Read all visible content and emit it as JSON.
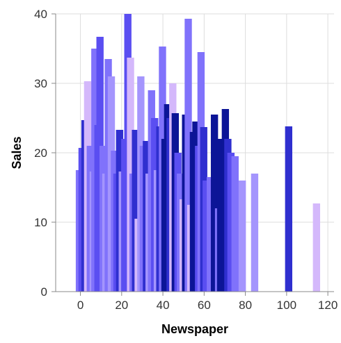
{
  "chart_data": {
    "type": "bar",
    "title": "",
    "xlabel": "Newspaper",
    "ylabel": "Sales",
    "xlim": [
      -12,
      123
    ],
    "ylim": [
      0,
      40
    ],
    "x_ticks": [
      0,
      20,
      40,
      60,
      80,
      100,
      120
    ],
    "y_ticks": [
      0,
      10,
      20,
      30,
      40
    ],
    "x_tick_labels": [
      "0",
      "20",
      "40",
      "60",
      "80",
      "100",
      "120"
    ],
    "y_tick_labels": [
      "0",
      "10",
      "20",
      "30",
      "40"
    ],
    "grid": true,
    "bar_width": 3.5,
    "colors": {
      "lavender": "#d4b8fb",
      "light": "#a495fd",
      "medium": "#8072fb",
      "blue": "#5a4ef1",
      "royal": "#2f2fcf",
      "navy": "#0c1597"
    },
    "bars": [
      {
        "x": -0.5,
        "y": 17.5,
        "color": "#8072fb"
      },
      {
        "x": 0.8,
        "y": 20.7,
        "color": "#5a4ef1"
      },
      {
        "x": 2.2,
        "y": 24.7,
        "color": "#2f2fcf"
      },
      {
        "x": 3.5,
        "y": 30.3,
        "color": "#d4b8fb"
      },
      {
        "x": 4.8,
        "y": 21.0,
        "color": "#8072fb"
      },
      {
        "x": 6.2,
        "y": 17.3,
        "color": "#a495fd"
      },
      {
        "x": 7.0,
        "y": 35.0,
        "color": "#8072fb"
      },
      {
        "x": 8.5,
        "y": 24.0,
        "color": "#5a4ef1"
      },
      {
        "x": 9.5,
        "y": 36.7,
        "color": "#5a4ef1"
      },
      {
        "x": 11.0,
        "y": 21.0,
        "color": "#8072fb"
      },
      {
        "x": 12.3,
        "y": 17.0,
        "color": "#a495fd"
      },
      {
        "x": 13.5,
        "y": 33.5,
        "color": "#8072fb"
      },
      {
        "x": 15.0,
        "y": 31.0,
        "color": "#a495fd"
      },
      {
        "x": 16.5,
        "y": 20.3,
        "color": "#8072fb"
      },
      {
        "x": 17.7,
        "y": 17.0,
        "color": "#5a4ef1"
      },
      {
        "x": 19.0,
        "y": 23.3,
        "color": "#2f2fcf"
      },
      {
        "x": 20.3,
        "y": 17.3,
        "color": "#a495fd"
      },
      {
        "x": 21.5,
        "y": 22.0,
        "color": "#5a4ef1"
      },
      {
        "x": 23.0,
        "y": 40.0,
        "color": "#5a4ef1"
      },
      {
        "x": 24.3,
        "y": 33.7,
        "color": "#d4b8fb"
      },
      {
        "x": 25.5,
        "y": 17.0,
        "color": "#8072fb"
      },
      {
        "x": 26.7,
        "y": 23.3,
        "color": "#2f2fcf"
      },
      {
        "x": 28.0,
        "y": 10.5,
        "color": "#d4b8fb"
      },
      {
        "x": 29.3,
        "y": 31.0,
        "color": "#a495fd"
      },
      {
        "x": 30.5,
        "y": 21.0,
        "color": "#8072fb"
      },
      {
        "x": 32.0,
        "y": 21.7,
        "color": "#2f2fcf"
      },
      {
        "x": 33.3,
        "y": 17.0,
        "color": "#a495fd"
      },
      {
        "x": 34.5,
        "y": 29.0,
        "color": "#8072fb"
      },
      {
        "x": 36.0,
        "y": 25.0,
        "color": "#5a4ef1"
      },
      {
        "x": 37.3,
        "y": 17.5,
        "color": "#a495fd"
      },
      {
        "x": 38.5,
        "y": 23.8,
        "color": "#2f2fcf"
      },
      {
        "x": 39.8,
        "y": 35.3,
        "color": "#8072fb"
      },
      {
        "x": 41.0,
        "y": 22.0,
        "color": "#0c1597"
      },
      {
        "x": 42.3,
        "y": 27.0,
        "color": "#0c1597"
      },
      {
        "x": 43.5,
        "y": 25.0,
        "color": "#2f2fcf"
      },
      {
        "x": 44.8,
        "y": 30.0,
        "color": "#d4b8fb"
      },
      {
        "x": 46.0,
        "y": 25.7,
        "color": "#0c1597"
      },
      {
        "x": 47.3,
        "y": 20.0,
        "color": "#5a4ef1"
      },
      {
        "x": 48.5,
        "y": 17.0,
        "color": "#8072fb"
      },
      {
        "x": 49.8,
        "y": 13.3,
        "color": "#d4b8fb"
      },
      {
        "x": 51.0,
        "y": 25.5,
        "color": "#0c1597"
      },
      {
        "x": 52.3,
        "y": 39.3,
        "color": "#8072fb"
      },
      {
        "x": 53.5,
        "y": 12.5,
        "color": "#d4b8fb"
      },
      {
        "x": 54.8,
        "y": 23.0,
        "color": "#0c1597"
      },
      {
        "x": 56.0,
        "y": 24.5,
        "color": "#0c1597"
      },
      {
        "x": 57.3,
        "y": 21.0,
        "color": "#5a4ef1"
      },
      {
        "x": 58.5,
        "y": 34.5,
        "color": "#8072fb"
      },
      {
        "x": 59.8,
        "y": 23.7,
        "color": "#2f2fcf"
      },
      {
        "x": 61.0,
        "y": 16.0,
        "color": "#5a4ef1"
      },
      {
        "x": 63.0,
        "y": 16.5,
        "color": "#8072fb"
      },
      {
        "x": 65.0,
        "y": 25.5,
        "color": "#0c1597"
      },
      {
        "x": 67.0,
        "y": 12.0,
        "color": "#8072fb"
      },
      {
        "x": 68.0,
        "y": 22.0,
        "color": "#0c1597"
      },
      {
        "x": 70.3,
        "y": 26.3,
        "color": "#0c1597"
      },
      {
        "x": 71.5,
        "y": 22.0,
        "color": "#2f2fcf"
      },
      {
        "x": 73.0,
        "y": 20.0,
        "color": "#5a4ef1"
      },
      {
        "x": 75.0,
        "y": 19.5,
        "color": "#8072fb"
      },
      {
        "x": 78.5,
        "y": 16.0,
        "color": "#a495fd"
      },
      {
        "x": 84.5,
        "y": 17.0,
        "color": "#a495fd"
      },
      {
        "x": 101.0,
        "y": 23.8,
        "color": "#2f2fcf"
      },
      {
        "x": 114.5,
        "y": 12.7,
        "color": "#d4b8fb"
      }
    ]
  }
}
